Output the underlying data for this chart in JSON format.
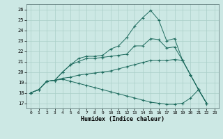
{
  "xlabel": "Humidex (Indice chaleur)",
  "bg_color": "#cce8e4",
  "grid_color": "#aacfc8",
  "line_color": "#1e6b5e",
  "xlim": [
    -0.5,
    23.5
  ],
  "ylim": [
    16.5,
    26.5
  ],
  "xticks": [
    0,
    1,
    2,
    3,
    4,
    5,
    6,
    7,
    8,
    9,
    10,
    11,
    12,
    13,
    14,
    15,
    16,
    17,
    18,
    19,
    20,
    21,
    22,
    23
  ],
  "yticks": [
    17,
    18,
    19,
    20,
    21,
    22,
    23,
    24,
    25,
    26
  ],
  "lines": [
    {
      "x": [
        0,
        1,
        2,
        3,
        4,
        5,
        6,
        7,
        8,
        9,
        10,
        11,
        12,
        13,
        14,
        15,
        16,
        17,
        18,
        19,
        20,
        21,
        22
      ],
      "y": [
        18.0,
        18.3,
        19.1,
        19.2,
        20.0,
        20.7,
        21.3,
        21.5,
        21.5,
        21.6,
        22.2,
        22.5,
        23.3,
        24.4,
        25.2,
        25.9,
        25.0,
        23.0,
        23.2,
        21.1,
        19.7,
        18.3,
        17.0
      ]
    },
    {
      "x": [
        0,
        1,
        2,
        3,
        4,
        5,
        6,
        7,
        8,
        9,
        10,
        11,
        12,
        13,
        14,
        15,
        16,
        17,
        18,
        19,
        20,
        21,
        22
      ],
      "y": [
        18.0,
        18.3,
        19.1,
        19.2,
        20.0,
        20.7,
        21.0,
        21.3,
        21.3,
        21.4,
        21.5,
        21.6,
        21.7,
        22.5,
        22.5,
        23.2,
        23.1,
        22.3,
        22.4,
        21.1,
        19.7,
        18.3,
        17.0
      ]
    },
    {
      "x": [
        0,
        1,
        2,
        3,
        4,
        5,
        6,
        7,
        8,
        9,
        10,
        11,
        12,
        13,
        14,
        15,
        16,
        17,
        18,
        19,
        20,
        21,
        22
      ],
      "y": [
        18.0,
        18.3,
        19.1,
        19.2,
        19.4,
        19.5,
        19.7,
        19.8,
        19.9,
        20.0,
        20.1,
        20.3,
        20.5,
        20.7,
        20.9,
        21.1,
        21.1,
        21.1,
        21.2,
        21.1,
        19.7,
        18.3,
        17.0
      ]
    },
    {
      "x": [
        0,
        1,
        2,
        3,
        4,
        5,
        6,
        7,
        8,
        9,
        10,
        11,
        12,
        13,
        14,
        15,
        16,
        17,
        18,
        19,
        20,
        21,
        22
      ],
      "y": [
        18.0,
        18.3,
        19.1,
        19.2,
        19.3,
        19.1,
        18.9,
        18.7,
        18.5,
        18.3,
        18.1,
        17.9,
        17.7,
        17.5,
        17.3,
        17.1,
        17.0,
        16.9,
        16.9,
        17.0,
        17.5,
        18.3,
        17.0
      ]
    }
  ]
}
